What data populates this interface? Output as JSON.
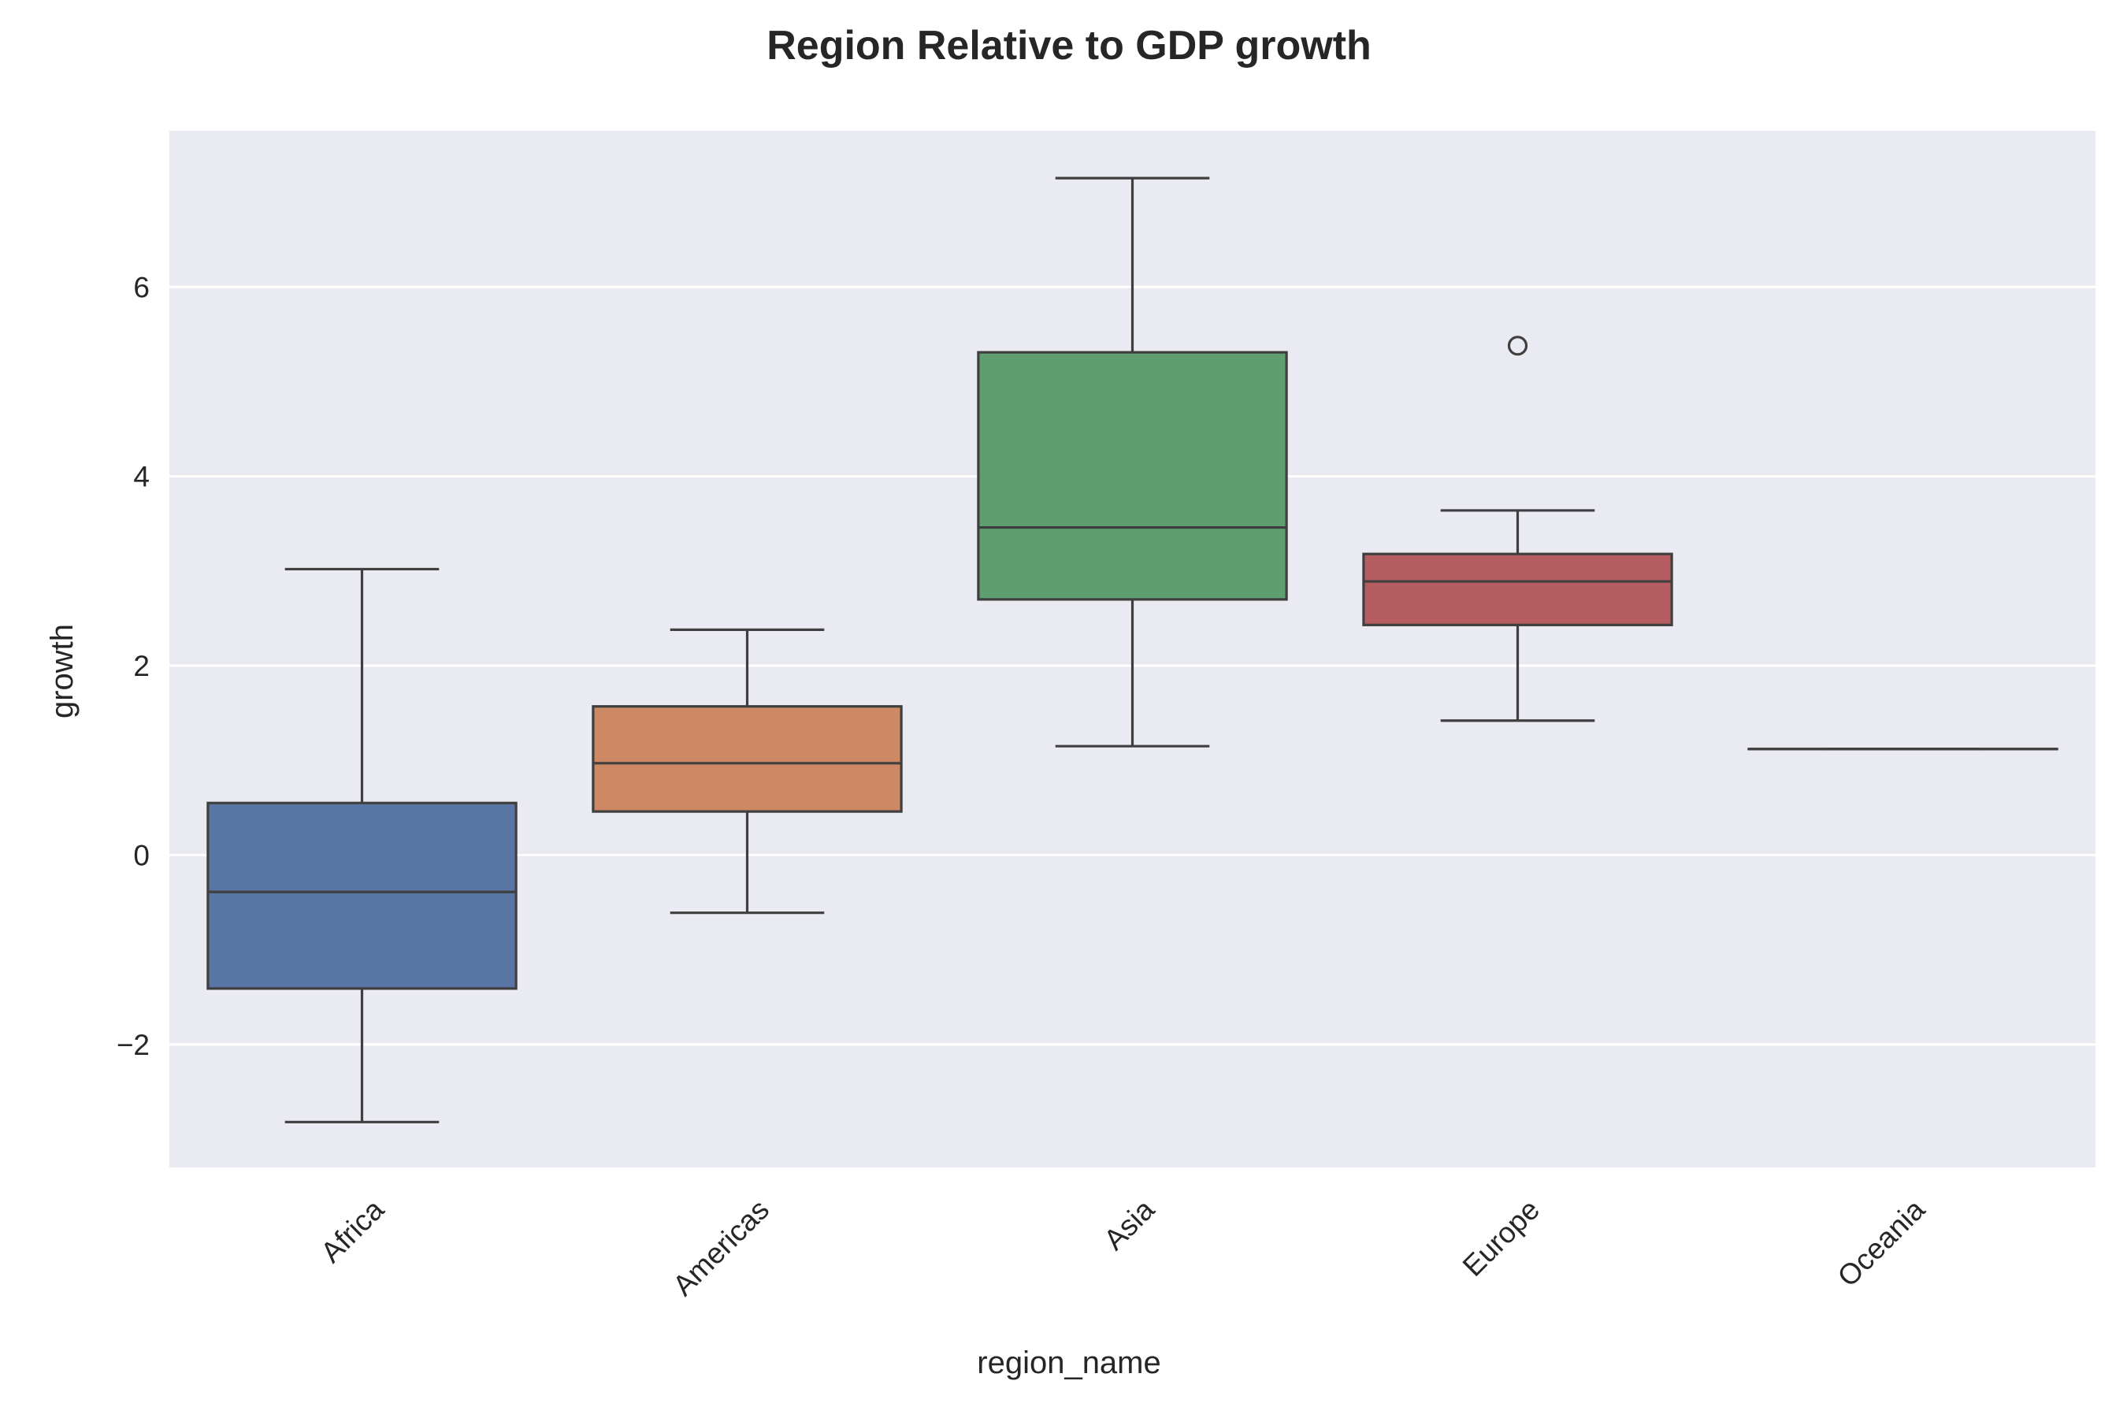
{
  "chart_data": {
    "type": "box",
    "title": "Region Relative to GDP growth",
    "xlabel": "region_name",
    "ylabel": "growth",
    "ylim": [
      -3.3,
      7.65
    ],
    "yticks": [
      -2,
      0,
      2,
      4,
      6
    ],
    "ytick_labels": [
      "−2",
      "0",
      "2",
      "4",
      "6"
    ],
    "grid": true,
    "legend": "none",
    "background_color": "#eaeaf2",
    "grid_color": "#ffffff",
    "line_color": "#3f3f3f",
    "categories": [
      "Africa",
      "Americas",
      "Asia",
      "Europe",
      "Oceania"
    ],
    "boxes": [
      {
        "category": "Africa",
        "whisker_low": -2.82,
        "q1": -1.41,
        "median": -0.39,
        "q3": 0.55,
        "whisker_high": 3.02,
        "outliers": [],
        "color": "#5875a4"
      },
      {
        "category": "Americas",
        "whisker_low": -0.61,
        "q1": 0.46,
        "median": 0.97,
        "q3": 1.57,
        "whisker_high": 2.38,
        "outliers": [],
        "color": "#cc8963"
      },
      {
        "category": "Asia",
        "whisker_low": 1.15,
        "q1": 2.7,
        "median": 3.46,
        "q3": 5.31,
        "whisker_high": 7.15,
        "outliers": [],
        "color": "#5f9e6e"
      },
      {
        "category": "Europe",
        "whisker_low": 1.42,
        "q1": 2.43,
        "median": 2.89,
        "q3": 3.18,
        "whisker_high": 3.64,
        "outliers": [
          5.38
        ],
        "color": "#b55d60"
      },
      {
        "category": "Oceania",
        "whisker_low": 1.12,
        "q1": 1.12,
        "median": 1.12,
        "q3": 1.12,
        "whisker_high": 1.12,
        "outliers": [],
        "color": "#857aab"
      }
    ]
  }
}
